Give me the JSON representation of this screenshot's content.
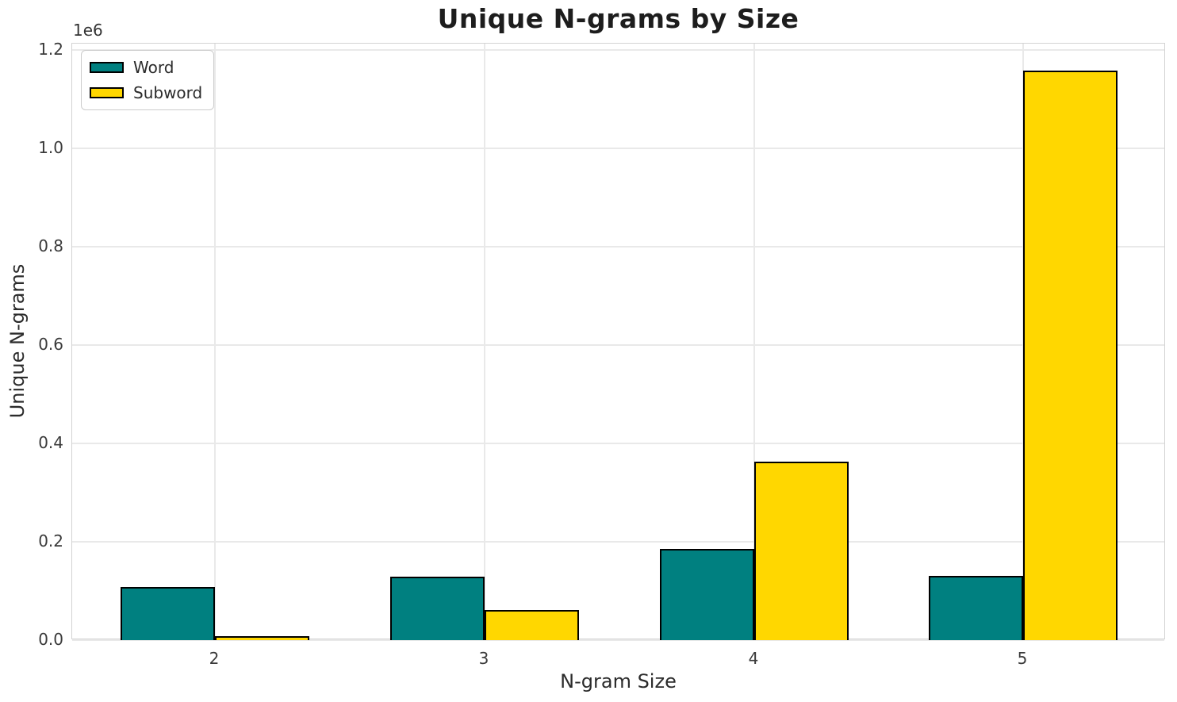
{
  "chart_data": {
    "type": "bar",
    "title": "Unique N-grams by Size",
    "xlabel": "N-gram Size",
    "ylabel": "Unique N-grams",
    "y_offset_label": "1e6",
    "categories": [
      "2",
      "3",
      "4",
      "5"
    ],
    "series": [
      {
        "name": "Word",
        "color": "#008080",
        "values": [
          108000,
          129000,
          186000,
          131000
        ]
      },
      {
        "name": "Subword",
        "color": "#FFD700",
        "values": [
          8000,
          61000,
          363000,
          1158000
        ]
      }
    ],
    "y_ticks": [
      0,
      200000,
      400000,
      600000,
      800000,
      1000000,
      1200000
    ],
    "y_tick_labels": [
      "0.0",
      "0.2",
      "0.4",
      "0.6",
      "0.8",
      "1.0",
      "1.2"
    ],
    "ylim": [
      0,
      1213000
    ],
    "grid": true,
    "legend_position": "upper left",
    "bar_edge_color": "#000000",
    "grid_color": "#e9e9e9",
    "spine_color": "#d3d3d3"
  }
}
